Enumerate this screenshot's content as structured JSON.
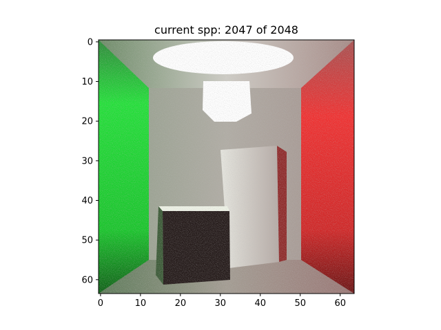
{
  "chart_data": {
    "type": "heatmap",
    "title": "current spp: 2047 of 2048",
    "xlabel": "",
    "ylabel": "",
    "xlim": [
      -0.5,
      63.5
    ],
    "ylim": [
      63.5,
      -0.5
    ],
    "x_ticks": [
      0,
      10,
      20,
      30,
      40,
      50,
      60
    ],
    "y_ticks": [
      0,
      10,
      20,
      30,
      40,
      50,
      60
    ],
    "grid": false,
    "legend": "none",
    "image_resolution": [
      64,
      64
    ],
    "image_content": "Noisy path-traced Cornell box render: white ceiling area light, green left wall, red right wall, grey back wall and floor, tall box on the right and short dark box on the left",
    "colors": {
      "left_wall": "#1fd42e",
      "right_wall": "#e42a2a",
      "back_wall": "#a9a79f",
      "ceiling": "#c9c7c1",
      "floor": "#9a9389",
      "light": "#ffffff",
      "tall_box": "#d6d1cb",
      "short_box_front": "#241a19",
      "short_box_top": "#eef2e6"
    }
  }
}
